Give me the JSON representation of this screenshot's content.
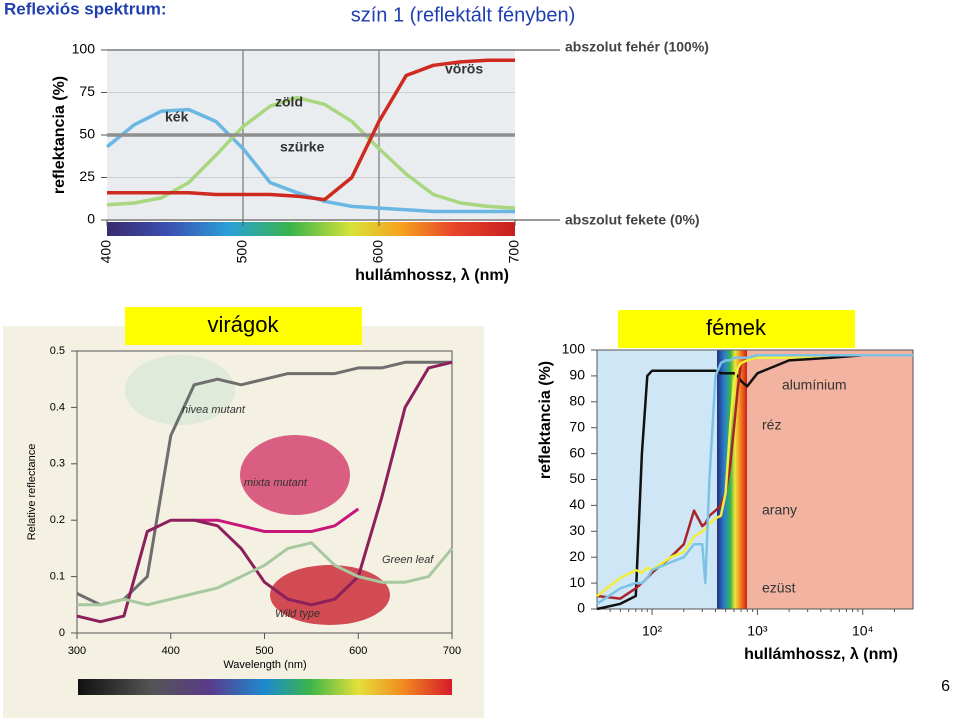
{
  "slide_title": "Reflexiós spektrum:",
  "page_number": "6",
  "chart_data": [
    {
      "type": "line",
      "title": "szín 1 (reflektált fényben)",
      "x_label": "hullámhossz, λ (nm)",
      "y_label": "reflektancia (%)",
      "annotations": [
        "abszolut fehér (100%)",
        "abszolut fekete (0%)"
      ],
      "x": [
        400,
        420,
        440,
        460,
        480,
        500,
        520,
        540,
        560,
        580,
        600,
        620,
        640,
        660,
        680,
        700
      ],
      "xlim": [
        400,
        700
      ],
      "xticks": [
        400,
        500,
        600,
        700
      ],
      "ylim": [
        0,
        100
      ],
      "yticks": [
        0,
        25,
        50,
        75,
        100
      ],
      "grid": true,
      "series": [
        {
          "name": "kék",
          "color": "#6bb7e3",
          "values": [
            43,
            56,
            64,
            65,
            58,
            42,
            22,
            16,
            11,
            8,
            7,
            6,
            5,
            5,
            5,
            5
          ]
        },
        {
          "name": "zöld",
          "color": "#a9d77f",
          "values": [
            9,
            10,
            13,
            22,
            38,
            55,
            67,
            72,
            68,
            58,
            42,
            27,
            15,
            10,
            8,
            7
          ]
        },
        {
          "name": "szürke",
          "color": "#8f8f8f",
          "values": [
            50,
            50,
            50,
            50,
            50,
            50,
            50,
            50,
            50,
            50,
            50,
            50,
            50,
            50,
            50,
            50
          ]
        },
        {
          "name": "vörös",
          "color": "#cf2a1f",
          "values": [
            16,
            16,
            16,
            16,
            15,
            15,
            15,
            14,
            12,
            25,
            58,
            85,
            91,
            93,
            94,
            94
          ]
        }
      ]
    },
    {
      "type": "line",
      "title": "virágok",
      "x_label": "Wavelength (nm)",
      "y_label": "Relative reflectance",
      "x": [
        300,
        325,
        350,
        375,
        400,
        425,
        450,
        475,
        500,
        525,
        550,
        575,
        600,
        625,
        650,
        675,
        700
      ],
      "xlim": [
        300,
        700
      ],
      "xticks": [
        300,
        400,
        500,
        600,
        700
      ],
      "ylim": [
        0,
        0.5
      ],
      "yticks": [
        0,
        0.1,
        0.2,
        0.3,
        0.4,
        0.5
      ],
      "grid": false,
      "series": [
        {
          "name": "nivea mutant",
          "color": "#6e6e6e",
          "values": [
            0.07,
            0.05,
            0.06,
            0.1,
            0.35,
            0.44,
            0.45,
            0.44,
            0.45,
            0.46,
            0.46,
            0.46,
            0.47,
            0.47,
            0.48,
            0.48,
            0.48
          ]
        },
        {
          "name": "mixta mutant",
          "color": "#c8177a",
          "values": [
            null,
            null,
            null,
            null,
            null,
            0.2,
            0.2,
            0.19,
            0.18,
            0.18,
            0.18,
            0.19,
            0.22,
            null,
            null,
            null,
            null
          ]
        },
        {
          "name": "Wild type",
          "color": "#8c1f5c",
          "values": [
            0.03,
            0.02,
            0.03,
            0.18,
            0.2,
            0.2,
            0.19,
            0.15,
            0.09,
            0.06,
            0.05,
            0.06,
            0.1,
            0.24,
            0.4,
            0.47,
            0.48
          ]
        },
        {
          "name": "Green leaf",
          "color": "#a8c9a0",
          "values": [
            0.05,
            0.05,
            0.06,
            0.05,
            0.06,
            0.07,
            0.08,
            0.1,
            0.12,
            0.15,
            0.16,
            0.12,
            0.1,
            0.09,
            0.09,
            0.1,
            0.15
          ]
        }
      ]
    },
    {
      "type": "line",
      "title": "fémek",
      "x_label": "hullámhossz, λ (nm)",
      "y_label": "reflektancia (%)",
      "xscale": "log",
      "x": [
        30,
        50,
        70,
        80,
        90,
        100,
        150,
        200,
        250,
        300,
        320,
        350,
        400,
        450,
        500,
        550,
        600,
        650,
        700,
        800,
        1000,
        2000,
        5000,
        10000,
        30000
      ],
      "xlim": [
        30,
        30000
      ],
      "xticks": [
        {
          "value": 100,
          "label": "10²"
        },
        {
          "value": 1000,
          "label": "10³"
        },
        {
          "value": 10000,
          "label": "10⁴"
        }
      ],
      "ylim": [
        0,
        100
      ],
      "yticks": [
        0,
        10,
        20,
        30,
        40,
        50,
        60,
        70,
        80,
        90,
        100
      ],
      "grid": false,
      "series": [
        {
          "name": "alumínium",
          "color": "#111111",
          "values": [
            0,
            2,
            5,
            60,
            90,
            92,
            92,
            92,
            92,
            92,
            92,
            92,
            92,
            91,
            91,
            91,
            91,
            90,
            88,
            86,
            91,
            96,
            97,
            98,
            98
          ]
        },
        {
          "name": "réz",
          "color": "#a8242a",
          "values": [
            5,
            4,
            8,
            10,
            12,
            14,
            20,
            25,
            38,
            32,
            33,
            36,
            38,
            40,
            45,
            55,
            70,
            85,
            95,
            96,
            97,
            97,
            98,
            98,
            98
          ]
        },
        {
          "name": "arany",
          "color": "#f2ee3a",
          "values": [
            5,
            12,
            15,
            14,
            16,
            15,
            20,
            22,
            28,
            30,
            31,
            33,
            35,
            36,
            45,
            70,
            88,
            93,
            95,
            96,
            97,
            97,
            98,
            98,
            98
          ]
        },
        {
          "name": "ezüst",
          "color": "#7cc3e6",
          "values": [
            2,
            8,
            10,
            10,
            12,
            15,
            18,
            20,
            25,
            25,
            10,
            50,
            90,
            95,
            96,
            96,
            97,
            97,
            97,
            97,
            98,
            98,
            98,
            98,
            98
          ]
        }
      ]
    }
  ]
}
